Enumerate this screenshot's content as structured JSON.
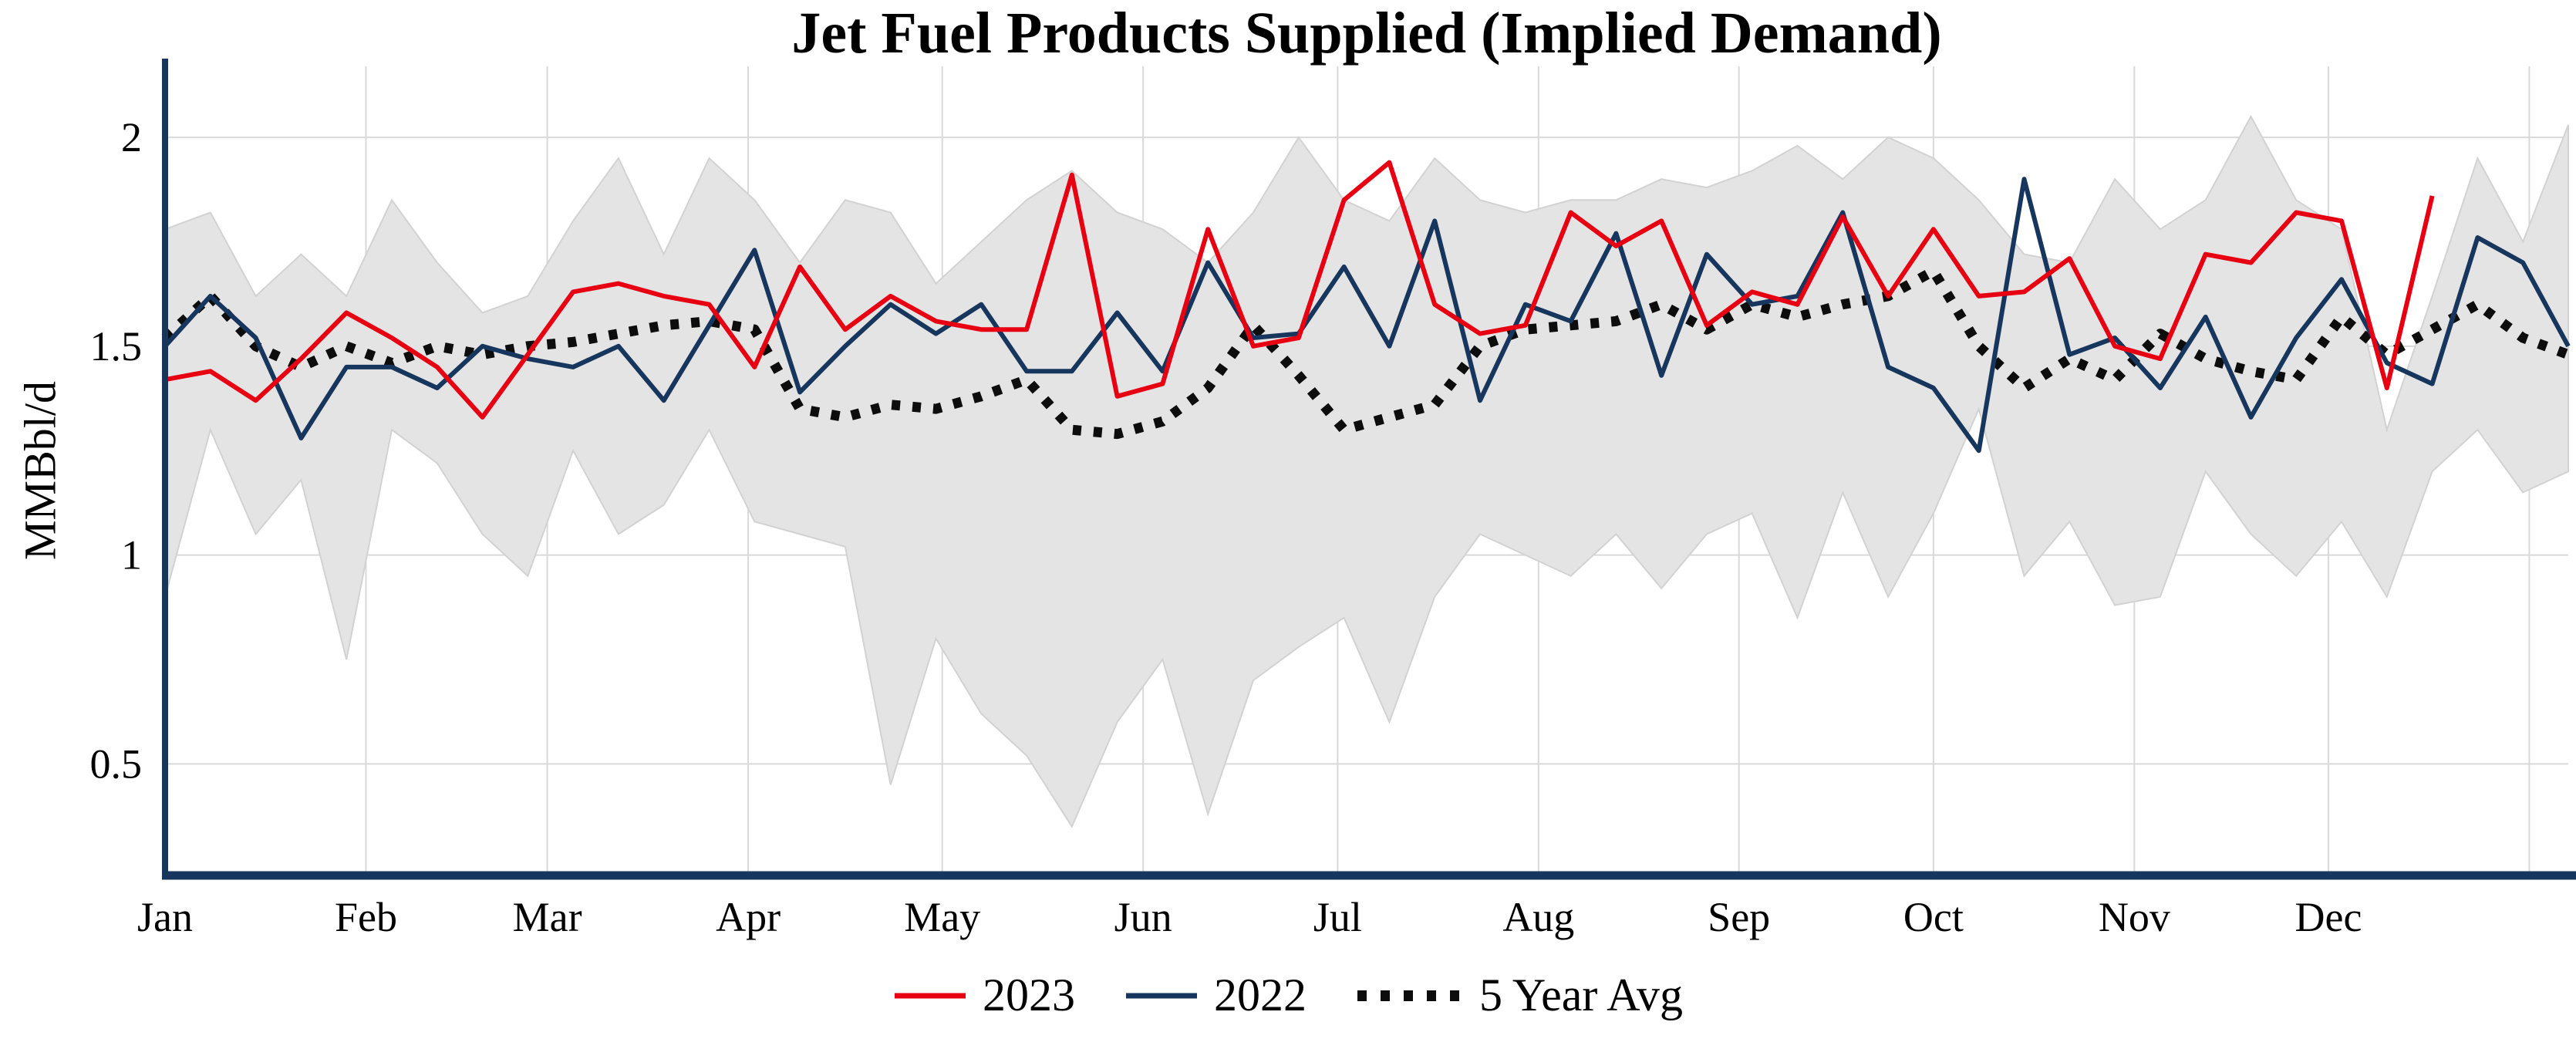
{
  "chart_data": {
    "type": "line",
    "title": "Jet Fuel Products Supplied (Implied Demand)",
    "xlabel": "",
    "ylabel": "MMBbl/d",
    "ylim": [
      0.233,
      2.17
    ],
    "yticks": [
      0.5,
      1,
      1.5,
      2
    ],
    "x_unit": "week_of_year",
    "x_weeks_total": 53,
    "grid": true,
    "grid_color": "#d9d9d9",
    "axis_color": "#17365d",
    "legend_position": "bottom-center",
    "months": [
      {
        "label": "Jan",
        "week": 0
      },
      {
        "label": "Feb",
        "week": 4.43
      },
      {
        "label": "Mar",
        "week": 8.43
      },
      {
        "label": "Apr",
        "week": 12.86
      },
      {
        "label": "May",
        "week": 17.14
      },
      {
        "label": "Jun",
        "week": 21.57
      },
      {
        "label": "Jul",
        "week": 25.86
      },
      {
        "label": "Aug",
        "week": 30.29
      },
      {
        "label": "Sep",
        "week": 34.71
      },
      {
        "label": "Oct",
        "week": 39.0
      },
      {
        "label": "Nov",
        "week": 43.43
      },
      {
        "label": "Dec",
        "week": 47.71
      }
    ],
    "extra_gridline_week": 52.14,
    "band": {
      "name": "5 Year Range",
      "color": "#e4e4e4",
      "edge_color": "#d2d2d2",
      "upper": [
        1.78,
        1.82,
        1.62,
        1.72,
        1.62,
        1.85,
        1.7,
        1.58,
        1.62,
        1.8,
        1.95,
        1.72,
        1.95,
        1.85,
        1.7,
        1.85,
        1.82,
        1.65,
        1.75,
        1.85,
        1.92,
        1.82,
        1.78,
        1.7,
        1.82,
        2.0,
        1.85,
        1.8,
        1.95,
        1.85,
        1.82,
        1.85,
        1.85,
        1.9,
        1.88,
        1.92,
        1.98,
        1.9,
        2.0,
        1.95,
        1.85,
        1.72,
        1.7,
        1.9,
        1.78,
        1.85,
        2.05,
        1.85,
        1.78,
        1.3,
        1.62,
        1.95,
        1.75,
        2.03
      ],
      "lower": [
        0.9,
        1.3,
        1.05,
        1.18,
        0.75,
        1.3,
        1.22,
        1.05,
        0.95,
        1.25,
        1.05,
        1.12,
        1.3,
        1.08,
        1.05,
        1.02,
        0.45,
        0.8,
        0.62,
        0.52,
        0.35,
        0.6,
        0.75,
        0.38,
        0.7,
        0.78,
        0.85,
        0.6,
        0.9,
        1.05,
        1.0,
        0.95,
        1.05,
        0.92,
        1.05,
        1.1,
        0.85,
        1.15,
        0.9,
        1.1,
        1.35,
        0.95,
        1.08,
        0.88,
        0.9,
        1.2,
        1.05,
        0.95,
        1.08,
        0.9,
        1.2,
        1.3,
        1.15,
        1.2
      ]
    },
    "series": [
      {
        "name": "2023",
        "color": "#e60012",
        "style": "solid",
        "values": [
          1.42,
          1.44,
          1.37,
          1.47,
          1.58,
          1.52,
          1.45,
          1.33,
          1.48,
          1.63,
          1.65,
          1.62,
          1.6,
          1.45,
          1.69,
          1.54,
          1.62,
          1.56,
          1.54,
          1.54,
          1.91,
          1.38,
          1.41,
          1.78,
          1.5,
          1.52,
          1.85,
          1.94,
          1.6,
          1.53,
          1.55,
          1.82,
          1.74,
          1.8,
          1.55,
          1.63,
          1.6,
          1.81,
          1.62,
          1.78,
          1.62,
          1.63,
          1.71,
          1.5,
          1.47,
          1.72,
          1.7,
          1.82,
          1.8,
          1.4,
          1.86
        ]
      },
      {
        "name": "2022",
        "color": "#17365d",
        "style": "solid",
        "values": [
          1.5,
          1.62,
          1.52,
          1.28,
          1.45,
          1.45,
          1.4,
          1.5,
          1.47,
          1.45,
          1.5,
          1.37,
          1.55,
          1.73,
          1.39,
          1.5,
          1.6,
          1.53,
          1.6,
          1.44,
          1.44,
          1.58,
          1.44,
          1.7,
          1.52,
          1.53,
          1.69,
          1.5,
          1.8,
          1.37,
          1.6,
          1.56,
          1.77,
          1.43,
          1.72,
          1.6,
          1.62,
          1.82,
          1.45,
          1.4,
          1.25,
          1.9,
          1.48,
          1.52,
          1.4,
          1.57,
          1.33,
          1.52,
          1.66,
          1.46,
          1.41,
          1.76,
          1.7,
          1.5
        ]
      },
      {
        "name": "5 Year Avg",
        "color": "#0d0d0d",
        "style": "dotted",
        "values": [
          1.52,
          1.62,
          1.5,
          1.45,
          1.5,
          1.46,
          1.5,
          1.48,
          1.5,
          1.51,
          1.53,
          1.55,
          1.56,
          1.54,
          1.35,
          1.33,
          1.36,
          1.35,
          1.38,
          1.42,
          1.3,
          1.29,
          1.32,
          1.4,
          1.55,
          1.43,
          1.3,
          1.33,
          1.36,
          1.5,
          1.54,
          1.55,
          1.56,
          1.6,
          1.54,
          1.6,
          1.57,
          1.6,
          1.62,
          1.68,
          1.5,
          1.4,
          1.47,
          1.42,
          1.53,
          1.47,
          1.44,
          1.42,
          1.57,
          1.48,
          1.54,
          1.6,
          1.52,
          1.48
        ]
      }
    ]
  }
}
